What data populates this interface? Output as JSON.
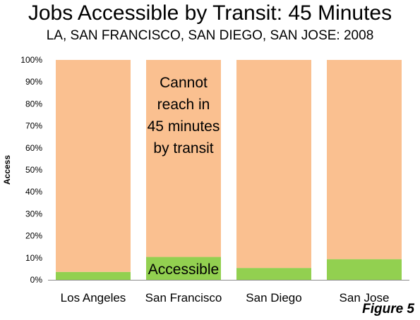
{
  "title": "Jobs Accessible by Transit: 45 Minutes",
  "subtitle": "LA, SAN FRANCISCO, SAN DIEGO, SAN JOSE: 2008",
  "figure_label": "Figure 5",
  "colors": {
    "accessible": "#92d050",
    "cannot": "#fac090"
  },
  "chart_data": {
    "type": "bar",
    "stacked": true,
    "categories": [
      "Los Angeles",
      "San Francisco",
      "San Diego",
      "San Jose"
    ],
    "series": [
      {
        "name": "Accessible",
        "values": [
          3.6,
          10.4,
          5.4,
          9.4
        ]
      },
      {
        "name": "Cannot reach in 45 minutes by transit",
        "values": [
          96.4,
          89.6,
          94.6,
          90.6
        ]
      }
    ],
    "ylabel": "Access",
    "xlabel": "",
    "ylim": [
      0,
      100
    ],
    "yticks": [
      "0%",
      "10%",
      "20%",
      "30%",
      "40%",
      "50%",
      "60%",
      "70%",
      "80%",
      "90%",
      "100%"
    ],
    "annotations": {
      "cannot_lines": [
        "Cannot",
        "reach in",
        "45 minutes",
        "by transit"
      ],
      "accessible": "Accessible"
    }
  }
}
